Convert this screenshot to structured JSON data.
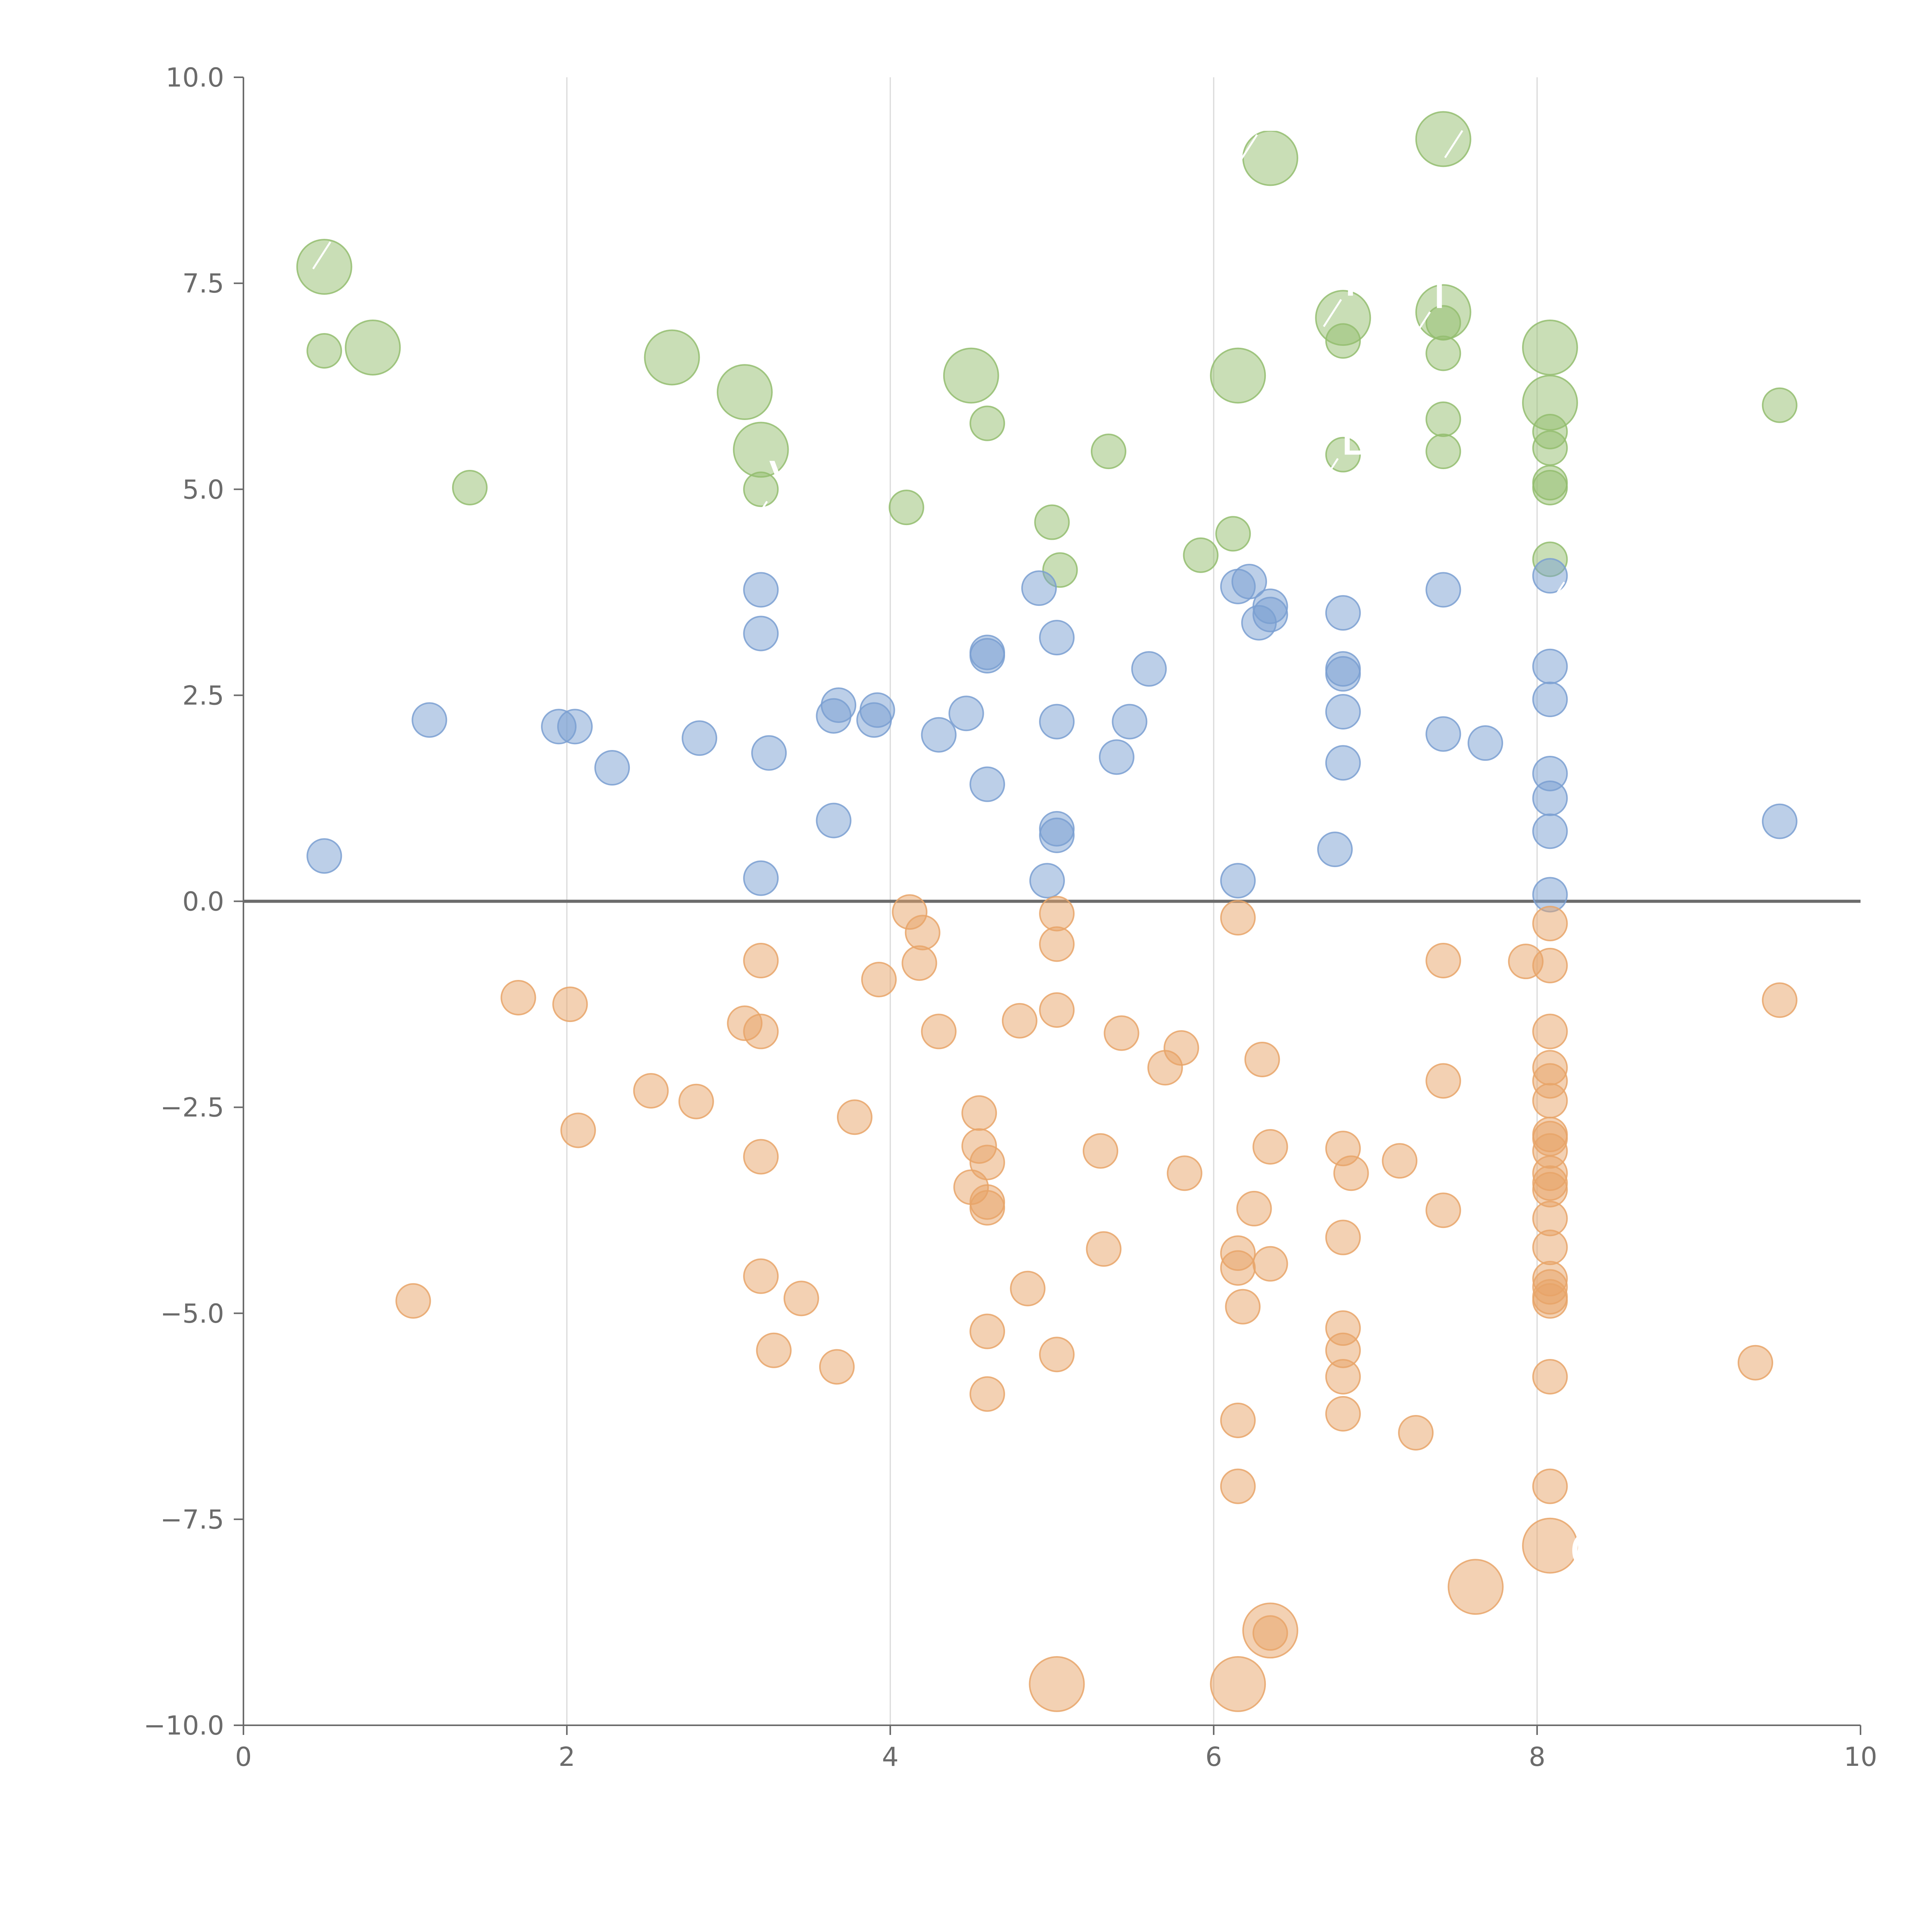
{
  "chart_data": {
    "type": "scatter",
    "title": "",
    "xlabel": "",
    "ylabel": "",
    "xlim": [
      0,
      10
    ],
    "ylim": [
      -10,
      10
    ],
    "xticks": [
      "0",
      "2",
      "4",
      "6",
      "8",
      "10"
    ],
    "yticks": [
      "10.0",
      "7.5",
      "5.0",
      "2.5",
      "0.0",
      "−2.5",
      "−5.0",
      "−7.5",
      "−10.0"
    ],
    "xtick_values": [
      0,
      2,
      4,
      6,
      8,
      10
    ],
    "ytick_values": [
      10,
      7.5,
      5,
      2.5,
      0,
      -2.5,
      -5,
      -7.5,
      -10
    ],
    "grid": "vertical",
    "zero_line": true,
    "series": [
      {
        "name": "green",
        "color": "#93bd6e",
        "points": [
          [
            0.5,
            7.7,
            1.6
          ],
          [
            0.8,
            6.72,
            1.6
          ],
          [
            0.5,
            6.68,
            1
          ],
          [
            1.4,
            5.02,
            1
          ],
          [
            2.65,
            6.6,
            1.6
          ],
          [
            3.1,
            6.18,
            1.6
          ],
          [
            3.2,
            5.48,
            1.6
          ],
          [
            3.2,
            5.0,
            1
          ],
          [
            4.1,
            4.78,
            1
          ],
          [
            4.5,
            6.38,
            1.6
          ],
          [
            4.6,
            5.8,
            1
          ],
          [
            5.0,
            4.6,
            1
          ],
          [
            5.05,
            4.02,
            1
          ],
          [
            5.35,
            5.46,
            1
          ],
          [
            5.92,
            4.2,
            1
          ],
          [
            6.12,
            4.46,
            1
          ],
          [
            6.15,
            6.38,
            1.6
          ],
          [
            6.35,
            9.02,
            1.6
          ],
          [
            6.8,
            7.08,
            1.6
          ],
          [
            6.8,
            6.8,
            1
          ],
          [
            6.8,
            5.42,
            1
          ],
          [
            7.42,
            9.25,
            1.6
          ],
          [
            7.42,
            7.15,
            1.6
          ],
          [
            7.42,
            7.02,
            1
          ],
          [
            7.42,
            6.65,
            1
          ],
          [
            7.42,
            5.85,
            1
          ],
          [
            7.42,
            5.46,
            1
          ],
          [
            8.08,
            6.72,
            1.6
          ],
          [
            8.08,
            6.05,
            1.6
          ],
          [
            8.08,
            5.7,
            1
          ],
          [
            8.08,
            5.5,
            1
          ],
          [
            8.08,
            5.08,
            1
          ],
          [
            8.08,
            5.02,
            1
          ],
          [
            8.08,
            4.15,
            1
          ],
          [
            9.5,
            6.02,
            1
          ]
        ]
      },
      {
        "name": "blue",
        "color": "#7a9fd1",
        "points": [
          [
            0.5,
            0.55,
            1
          ],
          [
            1.15,
            2.2,
            1
          ],
          [
            1.95,
            2.12,
            1
          ],
          [
            2.05,
            2.12,
            1
          ],
          [
            2.28,
            1.62,
            1
          ],
          [
            2.82,
            1.98,
            1
          ],
          [
            3.2,
            3.78,
            1
          ],
          [
            3.2,
            3.25,
            1
          ],
          [
            3.25,
            1.8,
            1
          ],
          [
            3.2,
            0.28,
            1
          ],
          [
            3.65,
            0.98,
            1
          ],
          [
            3.65,
            2.25,
            1
          ],
          [
            3.68,
            2.38,
            1
          ],
          [
            3.9,
            2.2,
            1
          ],
          [
            3.92,
            2.32,
            1
          ],
          [
            4.3,
            2.02,
            1
          ],
          [
            4.47,
            2.28,
            1
          ],
          [
            4.6,
            3.02,
            1
          ],
          [
            4.6,
            2.98,
            1
          ],
          [
            4.6,
            1.42,
            1
          ],
          [
            4.92,
            3.8,
            1
          ],
          [
            5.03,
            3.2,
            1
          ],
          [
            5.03,
            2.18,
            1
          ],
          [
            5.03,
            0.88,
            1
          ],
          [
            5.03,
            0.8,
            1
          ],
          [
            4.97,
            0.25,
            1
          ],
          [
            5.4,
            1.75,
            1
          ],
          [
            5.48,
            2.18,
            1
          ],
          [
            5.6,
            2.82,
            1
          ],
          [
            6.15,
            3.82,
            1
          ],
          [
            6.22,
            3.88,
            1
          ],
          [
            6.28,
            3.38,
            1
          ],
          [
            6.35,
            3.58,
            1
          ],
          [
            6.35,
            3.48,
            1
          ],
          [
            6.15,
            0.25,
            1
          ],
          [
            6.8,
            3.5,
            1
          ],
          [
            6.8,
            2.82,
            1
          ],
          [
            6.8,
            2.76,
            1
          ],
          [
            6.8,
            2.3,
            1
          ],
          [
            6.8,
            1.68,
            1
          ],
          [
            6.75,
            0.63,
            1
          ],
          [
            7.42,
            3.78,
            1
          ],
          [
            7.42,
            2.03,
            1
          ],
          [
            7.68,
            1.92,
            1
          ],
          [
            8.08,
            3.95,
            1
          ],
          [
            8.08,
            2.85,
            1
          ],
          [
            8.08,
            2.45,
            1
          ],
          [
            8.08,
            1.55,
            1
          ],
          [
            8.08,
            1.25,
            1
          ],
          [
            8.08,
            0.85,
            1
          ],
          [
            8.08,
            0.08,
            1
          ],
          [
            9.5,
            0.97,
            1
          ]
        ]
      },
      {
        "name": "orange",
        "color": "#e8a468",
        "points": [
          [
            1.05,
            -4.85,
            1
          ],
          [
            1.7,
            -1.17,
            1
          ],
          [
            2.02,
            -1.25,
            1
          ],
          [
            2.07,
            -2.78,
            1
          ],
          [
            2.52,
            -2.3,
            1
          ],
          [
            2.8,
            -2.43,
            1
          ],
          [
            3.1,
            -1.48,
            1
          ],
          [
            3.2,
            -1.58,
            1
          ],
          [
            3.2,
            -0.72,
            1
          ],
          [
            3.2,
            -3.1,
            1
          ],
          [
            3.2,
            -4.55,
            1
          ],
          [
            3.28,
            -5.45,
            1
          ],
          [
            3.45,
            -4.82,
            1
          ],
          [
            3.67,
            -5.65,
            1
          ],
          [
            3.78,
            -2.62,
            1
          ],
          [
            3.93,
            -0.95,
            1
          ],
          [
            4.12,
            -0.13,
            1
          ],
          [
            4.2,
            -0.38,
            1
          ],
          [
            4.18,
            -0.75,
            1
          ],
          [
            4.3,
            -1.58,
            1
          ],
          [
            4.5,
            -3.47,
            1
          ],
          [
            4.55,
            -2.57,
            1
          ],
          [
            4.55,
            -2.97,
            1
          ],
          [
            4.6,
            -3.17,
            1
          ],
          [
            4.6,
            -3.65,
            1
          ],
          [
            4.6,
            -3.72,
            1
          ],
          [
            4.6,
            -5.22,
            1
          ],
          [
            4.6,
            -5.98,
            1
          ],
          [
            4.8,
            -1.45,
            1
          ],
          [
            4.85,
            -4.7,
            1
          ],
          [
            5.03,
            -0.15,
            1
          ],
          [
            5.03,
            -0.52,
            1
          ],
          [
            5.03,
            -1.32,
            1
          ],
          [
            5.03,
            -5.5,
            1
          ],
          [
            5.03,
            -9.5,
            1.6
          ],
          [
            5.3,
            -3.03,
            1
          ],
          [
            5.32,
            -4.22,
            1
          ],
          [
            5.43,
            -1.6,
            1
          ],
          [
            5.7,
            -2.02,
            1
          ],
          [
            5.8,
            -1.78,
            1
          ],
          [
            5.82,
            -3.3,
            1
          ],
          [
            6.15,
            -0.2,
            1
          ],
          [
            6.15,
            -4.27,
            1
          ],
          [
            6.15,
            -4.45,
            1
          ],
          [
            6.18,
            -4.92,
            1
          ],
          [
            6.15,
            -6.3,
            1
          ],
          [
            6.15,
            -7.1,
            1
          ],
          [
            6.15,
            -9.5,
            1.6
          ],
          [
            6.25,
            -3.73,
            1
          ],
          [
            6.3,
            -1.92,
            1
          ],
          [
            6.35,
            -2.98,
            1
          ],
          [
            6.35,
            -4.4,
            1
          ],
          [
            6.35,
            -8.85,
            1.6
          ],
          [
            6.35,
            -8.88,
            1
          ],
          [
            6.8,
            -3.0,
            1
          ],
          [
            6.85,
            -3.3,
            1
          ],
          [
            6.8,
            -4.08,
            1
          ],
          [
            6.8,
            -5.18,
            1
          ],
          [
            6.8,
            -5.45,
            1
          ],
          [
            6.8,
            -5.77,
            1
          ],
          [
            6.8,
            -6.22,
            1
          ],
          [
            7.15,
            -3.15,
            1
          ],
          [
            7.25,
            -6.45,
            1
          ],
          [
            7.42,
            -0.72,
            1
          ],
          [
            7.42,
            -2.18,
            1
          ],
          [
            7.42,
            -3.75,
            1
          ],
          [
            7.62,
            -8.32,
            1.6
          ],
          [
            7.93,
            -0.73,
            1
          ],
          [
            8.08,
            -0.27,
            1
          ],
          [
            8.08,
            -0.78,
            1
          ],
          [
            8.08,
            -1.58,
            1
          ],
          [
            8.08,
            -2.02,
            1
          ],
          [
            8.08,
            -2.18,
            1
          ],
          [
            8.08,
            -2.42,
            1
          ],
          [
            8.08,
            -2.83,
            1
          ],
          [
            8.08,
            -2.88,
            1
          ],
          [
            8.08,
            -3.03,
            1
          ],
          [
            8.08,
            -3.3,
            1
          ],
          [
            8.08,
            -3.42,
            1
          ],
          [
            8.08,
            -3.5,
            1
          ],
          [
            8.08,
            -3.85,
            1
          ],
          [
            8.08,
            -4.2,
            1
          ],
          [
            8.08,
            -4.58,
            1
          ],
          [
            8.08,
            -4.68,
            1
          ],
          [
            8.08,
            -4.8,
            1
          ],
          [
            8.08,
            -4.85,
            1
          ],
          [
            8.08,
            -5.77,
            1
          ],
          [
            8.08,
            -7.1,
            1
          ],
          [
            8.08,
            -7.82,
            1.6
          ],
          [
            9.35,
            -5.6,
            1
          ],
          [
            9.5,
            -1.2,
            1
          ]
        ]
      }
    ],
    "annotations": [
      {
        "text": "I",
        "x": 0.55,
        "y": 8.05
      },
      {
        "text": "B",
        "x": 6.28,
        "y": 9.35
      },
      {
        "text": "M",
        "x": 7.55,
        "y": 9.4
      },
      {
        "text": "I",
        "x": 6.8,
        "y": 7.35
      },
      {
        "text": "I",
        "x": 7.35,
        "y": 7.2
      },
      {
        "text": "B",
        "x": 6.78,
        "y": 5.42
      },
      {
        "text": "C",
        "x": 8.18,
        "y": 3.92
      },
      {
        "text": "V",
        "x": 3.25,
        "y": 4.9
      },
      {
        "text": "C",
        "x": 8.2,
        "y": -8.1
      }
    ]
  }
}
